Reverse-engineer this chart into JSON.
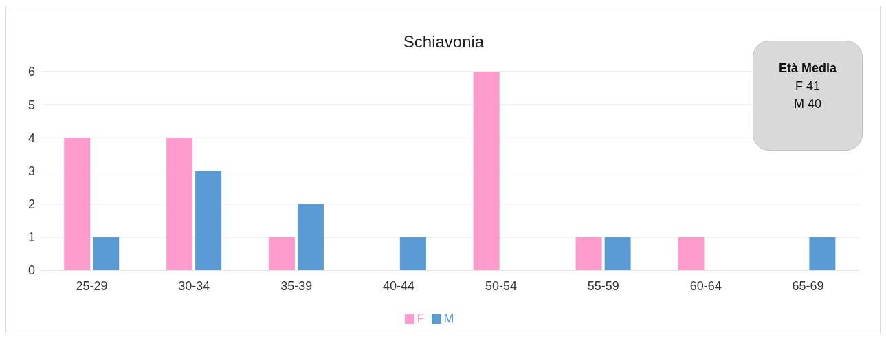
{
  "chart_data": {
    "type": "bar",
    "title": "Schiavonia",
    "categories": [
      "25-29",
      "30-34",
      "35-39",
      "40-44",
      "50-54",
      "55-59",
      "60-64",
      "65-69"
    ],
    "series": [
      {
        "name": "F",
        "color": "#ff9bcc",
        "values": [
          4,
          4,
          1,
          0,
          6,
          1,
          1,
          0
        ]
      },
      {
        "name": "M",
        "color": "#5b9bd5",
        "values": [
          1,
          3,
          2,
          1,
          0,
          1,
          0,
          1
        ]
      }
    ],
    "ylim": [
      0,
      6
    ],
    "yticks": [
      0,
      1,
      2,
      3,
      4,
      5,
      6
    ],
    "grid": "y",
    "legend": "bottom",
    "annotations": [
      "Età Media",
      "F 41",
      "M 40"
    ]
  }
}
